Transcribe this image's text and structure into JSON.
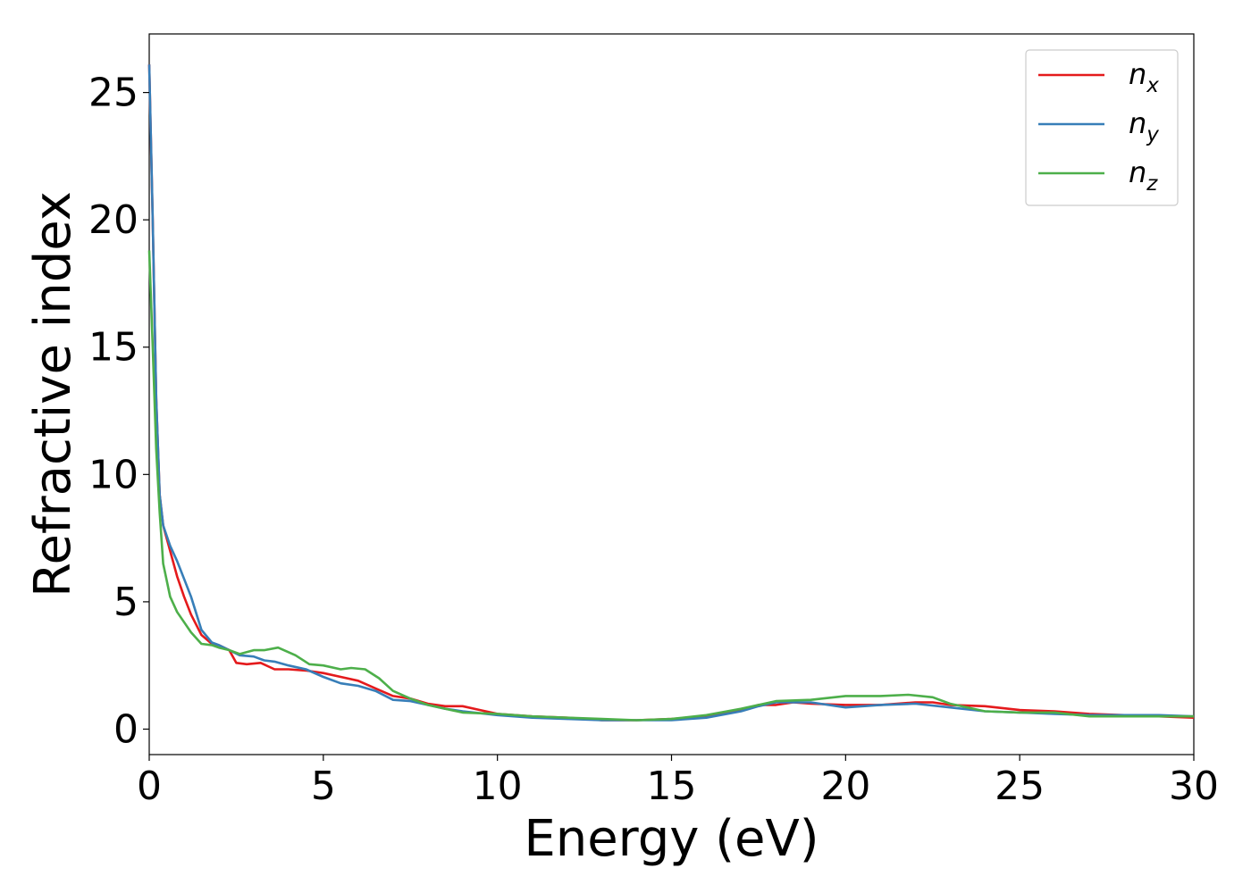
{
  "chart_data": {
    "type": "line",
    "title": "",
    "xlabel": "Energy (eV)",
    "ylabel": "Refractive index",
    "xlim": [
      0,
      30
    ],
    "ylim": [
      -1,
      27.3
    ],
    "x_ticks": [
      0,
      5,
      10,
      15,
      20,
      25,
      30
    ],
    "y_ticks": [
      0,
      5,
      10,
      15,
      20,
      25
    ],
    "x_tick_labels": [
      "0",
      "5",
      "10",
      "15",
      "20",
      "25",
      "30"
    ],
    "y_tick_labels": [
      "0",
      "5",
      "10",
      "15",
      "20",
      "25"
    ],
    "grid": false,
    "legend_position": "top-right",
    "series": [
      {
        "name": "n_x",
        "label_base": "n",
        "label_sub": "x",
        "color": "#e41a1c",
        "points": [
          [
            0,
            26.1
          ],
          [
            0.1,
            20
          ],
          [
            0.2,
            13
          ],
          [
            0.3,
            9.2
          ],
          [
            0.4,
            8
          ],
          [
            0.6,
            7
          ],
          [
            0.8,
            6
          ],
          [
            1.0,
            5.2
          ],
          [
            1.2,
            4.5
          ],
          [
            1.5,
            3.7
          ],
          [
            1.8,
            3.35
          ],
          [
            2.0,
            3.3
          ],
          [
            2.3,
            3.1
          ],
          [
            2.5,
            2.6
          ],
          [
            2.8,
            2.55
          ],
          [
            3.2,
            2.6
          ],
          [
            3.6,
            2.35
          ],
          [
            4.0,
            2.35
          ],
          [
            4.5,
            2.3
          ],
          [
            5.0,
            2.2
          ],
          [
            5.5,
            2.05
          ],
          [
            6.0,
            1.9
          ],
          [
            6.5,
            1.6
          ],
          [
            7.0,
            1.3
          ],
          [
            7.5,
            1.2
          ],
          [
            8.0,
            1.0
          ],
          [
            8.5,
            0.9
          ],
          [
            9.0,
            0.9
          ],
          [
            9.5,
            0.75
          ],
          [
            10,
            0.6
          ],
          [
            11,
            0.5
          ],
          [
            12,
            0.45
          ],
          [
            13,
            0.35
          ],
          [
            14,
            0.35
          ],
          [
            15,
            0.4
          ],
          [
            16,
            0.5
          ],
          [
            17,
            0.75
          ],
          [
            17.5,
            0.95
          ],
          [
            18,
            0.95
          ],
          [
            18.5,
            1.05
          ],
          [
            19,
            1.0
          ],
          [
            20,
            0.95
          ],
          [
            21,
            0.95
          ],
          [
            22,
            1.05
          ],
          [
            22.5,
            1.05
          ],
          [
            23,
            0.95
          ],
          [
            24,
            0.9
          ],
          [
            25,
            0.75
          ],
          [
            26,
            0.7
          ],
          [
            27,
            0.6
          ],
          [
            28,
            0.55
          ],
          [
            29,
            0.5
          ],
          [
            30,
            0.45
          ]
        ]
      },
      {
        "name": "n_y",
        "label_base": "n",
        "label_sub": "y",
        "color": "#377eb8",
        "points": [
          [
            0,
            26.1
          ],
          [
            0.1,
            20
          ],
          [
            0.2,
            13
          ],
          [
            0.3,
            9.2
          ],
          [
            0.4,
            8
          ],
          [
            0.6,
            7.2
          ],
          [
            0.8,
            6.6
          ],
          [
            1.0,
            5.9
          ],
          [
            1.2,
            5.2
          ],
          [
            1.5,
            3.9
          ],
          [
            1.8,
            3.4
          ],
          [
            2.0,
            3.3
          ],
          [
            2.3,
            3.1
          ],
          [
            2.6,
            2.9
          ],
          [
            3.0,
            2.85
          ],
          [
            3.3,
            2.7
          ],
          [
            3.6,
            2.65
          ],
          [
            4.0,
            2.5
          ],
          [
            4.5,
            2.35
          ],
          [
            5.0,
            2.05
          ],
          [
            5.5,
            1.8
          ],
          [
            6.0,
            1.7
          ],
          [
            6.5,
            1.5
          ],
          [
            7.0,
            1.15
          ],
          [
            7.5,
            1.1
          ],
          [
            8.0,
            0.95
          ],
          [
            8.5,
            0.8
          ],
          [
            9.0,
            0.7
          ],
          [
            10,
            0.55
          ],
          [
            11,
            0.45
          ],
          [
            12,
            0.4
          ],
          [
            13,
            0.35
          ],
          [
            14,
            0.35
          ],
          [
            15,
            0.35
          ],
          [
            16,
            0.45
          ],
          [
            17,
            0.7
          ],
          [
            17.5,
            0.9
          ],
          [
            18,
            1.05
          ],
          [
            19,
            1.05
          ],
          [
            20,
            0.85
          ],
          [
            21,
            0.95
          ],
          [
            22,
            1.0
          ],
          [
            23,
            0.85
          ],
          [
            24,
            0.7
          ],
          [
            25,
            0.65
          ],
          [
            26,
            0.6
          ],
          [
            27,
            0.55
          ],
          [
            28,
            0.55
          ],
          [
            29,
            0.55
          ],
          [
            30,
            0.5
          ]
        ]
      },
      {
        "name": "n_z",
        "label_base": "n",
        "label_sub": "z",
        "color": "#4daf4a",
        "points": [
          [
            0,
            18.8
          ],
          [
            0.1,
            15
          ],
          [
            0.2,
            11
          ],
          [
            0.3,
            8.5
          ],
          [
            0.4,
            6.5
          ],
          [
            0.6,
            5.2
          ],
          [
            0.8,
            4.6
          ],
          [
            1.0,
            4.2
          ],
          [
            1.2,
            3.8
          ],
          [
            1.5,
            3.35
          ],
          [
            1.8,
            3.3
          ],
          [
            2.0,
            3.2
          ],
          [
            2.3,
            3.1
          ],
          [
            2.6,
            2.95
          ],
          [
            3.0,
            3.1
          ],
          [
            3.3,
            3.1
          ],
          [
            3.7,
            3.2
          ],
          [
            4.2,
            2.9
          ],
          [
            4.6,
            2.55
          ],
          [
            5.0,
            2.5
          ],
          [
            5.5,
            2.35
          ],
          [
            5.8,
            2.4
          ],
          [
            6.2,
            2.35
          ],
          [
            6.6,
            2.0
          ],
          [
            7.0,
            1.5
          ],
          [
            7.5,
            1.2
          ],
          [
            8.0,
            0.95
          ],
          [
            9.0,
            0.65
          ],
          [
            10,
            0.6
          ],
          [
            11,
            0.5
          ],
          [
            12,
            0.45
          ],
          [
            13,
            0.4
          ],
          [
            14,
            0.35
          ],
          [
            15,
            0.4
          ],
          [
            16,
            0.55
          ],
          [
            17,
            0.8
          ],
          [
            18,
            1.1
          ],
          [
            19,
            1.15
          ],
          [
            20,
            1.3
          ],
          [
            21,
            1.3
          ],
          [
            21.8,
            1.35
          ],
          [
            22.5,
            1.25
          ],
          [
            23,
            1.0
          ],
          [
            24,
            0.7
          ],
          [
            25,
            0.65
          ],
          [
            26,
            0.65
          ],
          [
            27,
            0.5
          ],
          [
            28,
            0.5
          ],
          [
            29,
            0.5
          ],
          [
            30,
            0.5
          ]
        ]
      }
    ]
  }
}
